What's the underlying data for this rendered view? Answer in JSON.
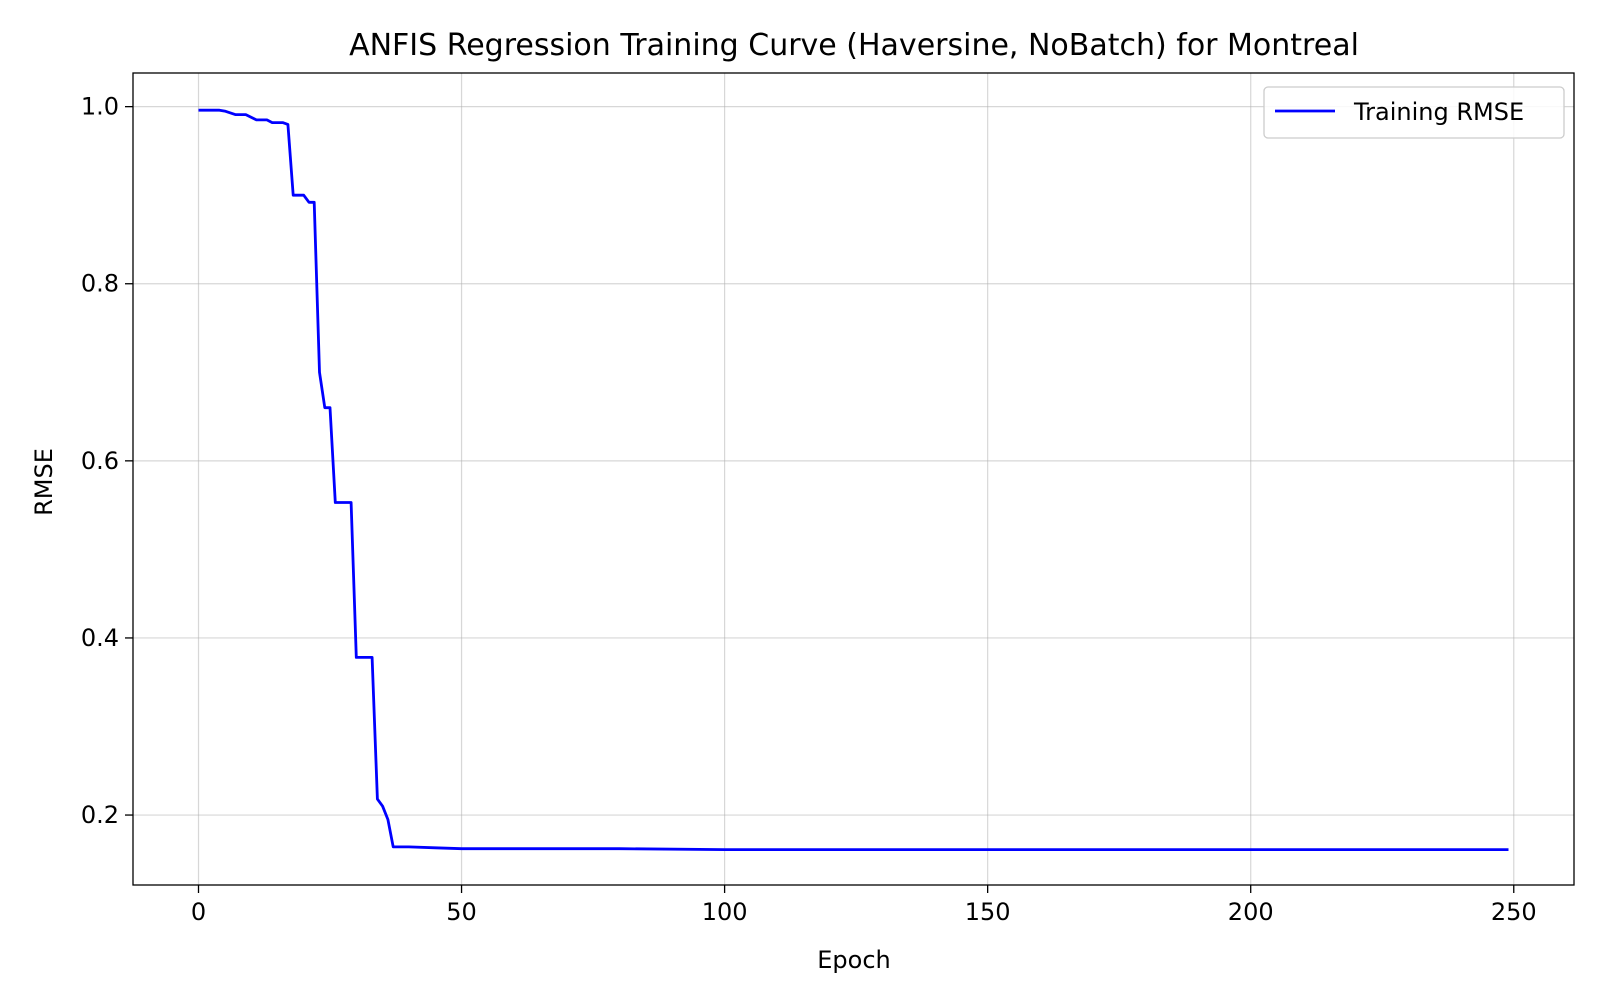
{
  "chart_data": {
    "type": "line",
    "title": "ANFIS Regression Training Curve (Haversine, NoBatch) for Montreal",
    "xlabel": "Epoch",
    "ylabel": "RMSE",
    "xlim": [
      -12.45,
      261.45
    ],
    "ylim": [
      0.121,
      1.038
    ],
    "xticks": [
      0,
      50,
      100,
      150,
      200,
      250
    ],
    "xtick_labels": [
      "0",
      "50",
      "100",
      "150",
      "200",
      "250"
    ],
    "yticks": [
      0.2,
      0.4,
      0.6,
      0.8,
      1.0
    ],
    "ytick_labels": [
      "0.2",
      "0.4",
      "0.6",
      "0.8",
      "1.0"
    ],
    "grid": true,
    "legend_position": "top-right",
    "series": [
      {
        "name": "Training RMSE",
        "color": "#0000ff",
        "x": [
          0,
          4,
          5,
          7,
          9,
          11,
          13,
          14,
          16,
          17,
          18,
          20,
          21,
          22,
          23,
          24,
          25,
          26,
          27,
          28,
          29,
          30,
          31,
          32,
          33,
          34,
          35,
          36,
          37,
          40,
          45,
          50,
          60,
          80,
          100,
          150,
          200,
          249
        ],
        "y": [
          0.996,
          0.996,
          0.995,
          0.991,
          0.991,
          0.985,
          0.985,
          0.982,
          0.982,
          0.98,
          0.9,
          0.9,
          0.892,
          0.892,
          0.7,
          0.66,
          0.66,
          0.553,
          0.553,
          0.553,
          0.553,
          0.378,
          0.378,
          0.378,
          0.378,
          0.218,
          0.21,
          0.195,
          0.164,
          0.164,
          0.163,
          0.162,
          0.162,
          0.162,
          0.161,
          0.161,
          0.161,
          0.161
        ]
      }
    ]
  }
}
